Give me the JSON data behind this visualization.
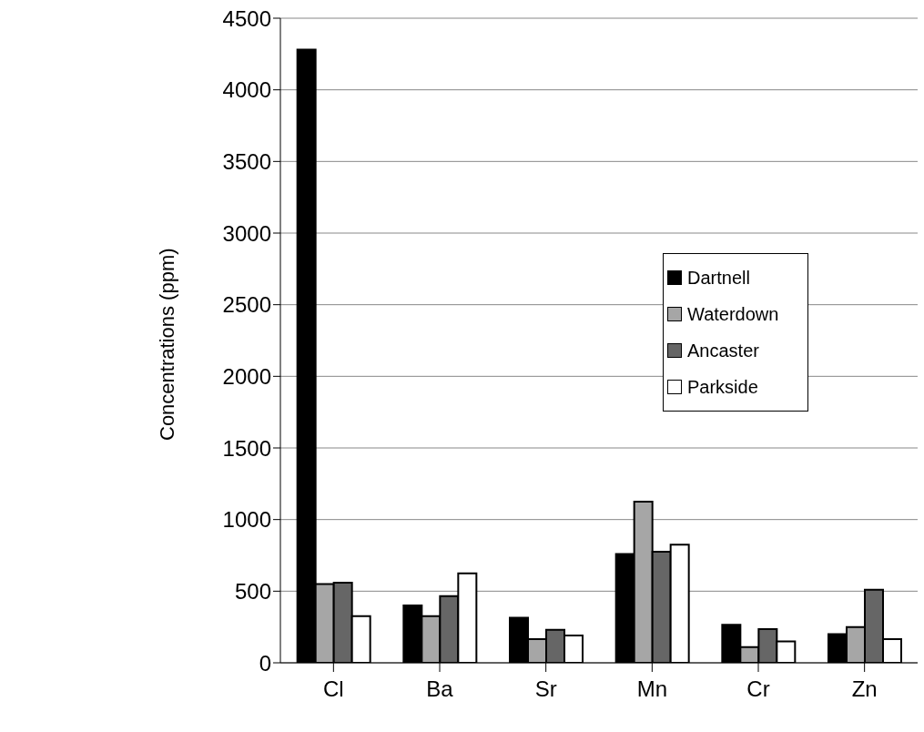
{
  "chart_data": {
    "type": "bar",
    "ylabel": "Concentrations (ppm)",
    "categories": [
      "Cl",
      "Ba",
      "Sr",
      "Mn",
      "Cr",
      "Zn"
    ],
    "series": [
      {
        "name": "Dartnell",
        "color": "#000000",
        "values": [
          4280,
          400,
          315,
          760,
          265,
          200
        ]
      },
      {
        "name": "Waterdown",
        "color": "#a6a6a6",
        "values": [
          550,
          325,
          165,
          1125,
          110,
          250
        ]
      },
      {
        "name": "Ancaster",
        "color": "#666666",
        "values": [
          560,
          465,
          230,
          775,
          235,
          510
        ]
      },
      {
        "name": "Parkside",
        "color": "#ffffff",
        "values": [
          325,
          625,
          190,
          825,
          150,
          165
        ]
      }
    ],
    "ylim": [
      0,
      4500
    ],
    "yticks": [
      0,
      500,
      1000,
      1500,
      2000,
      2500,
      3000,
      3500,
      4000,
      4500
    ],
    "grid": "y",
    "legend": "right"
  }
}
